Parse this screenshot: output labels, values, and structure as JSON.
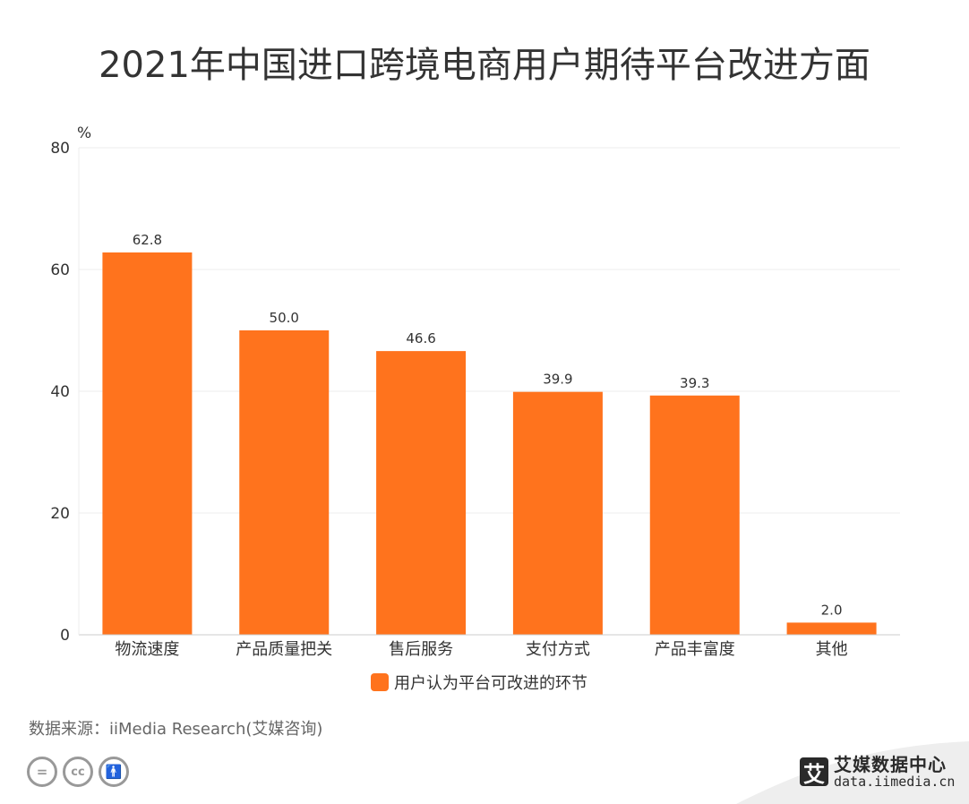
{
  "title": "2021年中国进口跨境电商用户期待平台改进方面",
  "chart_data": {
    "type": "bar",
    "categories": [
      "物流速度",
      "产品质量把关",
      "售后服务",
      "支付方式",
      "产品丰富度",
      "其他"
    ],
    "series": [
      {
        "name": "用户认为平台可改进的环节",
        "values": [
          62.8,
          50.0,
          46.6,
          39.9,
          39.3,
          2.0
        ],
        "color": "#FF731D"
      }
    ],
    "value_labels": [
      "62.8",
      "50.0",
      "46.6",
      "39.9",
      "39.3",
      "2.0"
    ],
    "y_unit": "%",
    "ylim": [
      0,
      80
    ],
    "y_ticks": [
      0,
      20,
      40,
      60,
      80
    ],
    "grid": true,
    "legend_position": "bottom-center"
  },
  "source": "数据来源：iiMedia Research(艾媒咨询)",
  "license_icons": [
    "equal-icon",
    "cc-icon",
    "person-icon"
  ],
  "brand": {
    "logo_char": "艾",
    "name": "艾媒数据中心",
    "url": "data.iimedia.cn"
  },
  "colors": {
    "bar": "#FF731D",
    "grid": "#eeeeee",
    "axis": "#cccccc"
  }
}
